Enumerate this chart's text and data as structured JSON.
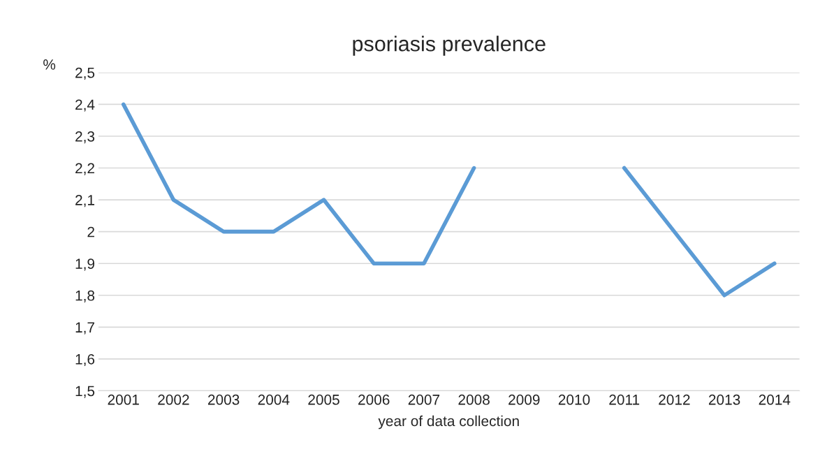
{
  "chart_data": {
    "type": "line",
    "title": "psoriasis prevalence",
    "xlabel": "year of data collection",
    "ylabel": "%",
    "categories": [
      "2001",
      "2002",
      "2003",
      "2004",
      "2005",
      "2006",
      "2007",
      "2008",
      "2009",
      "2010",
      "2011",
      "2012",
      "2013",
      "2014"
    ],
    "series": [
      {
        "color": "#5b9bd5",
        "values": [
          2.4,
          2.1,
          2.0,
          2.0,
          2.1,
          1.9,
          1.9,
          2.2,
          null,
          null,
          2.2,
          2.0,
          1.8,
          1.9
        ]
      }
    ],
    "ylim": [
      1.5,
      2.5
    ],
    "yticks": [
      {
        "value": 1.5,
        "label": "1,5"
      },
      {
        "value": 1.6,
        "label": "1,6"
      },
      {
        "value": 1.7,
        "label": "1,7"
      },
      {
        "value": 1.8,
        "label": "1,8"
      },
      {
        "value": 1.9,
        "label": "1,9"
      },
      2,
      {
        "value": 2.1,
        "label": "2,1"
      },
      {
        "value": 2.2,
        "label": "2,2"
      },
      {
        "value": 2.3,
        "label": "2,3"
      },
      {
        "value": 2.4,
        "label": "2,4"
      },
      {
        "value": 2.5,
        "label": "2,5"
      }
    ],
    "grid": "y",
    "line_style": "solid"
  }
}
